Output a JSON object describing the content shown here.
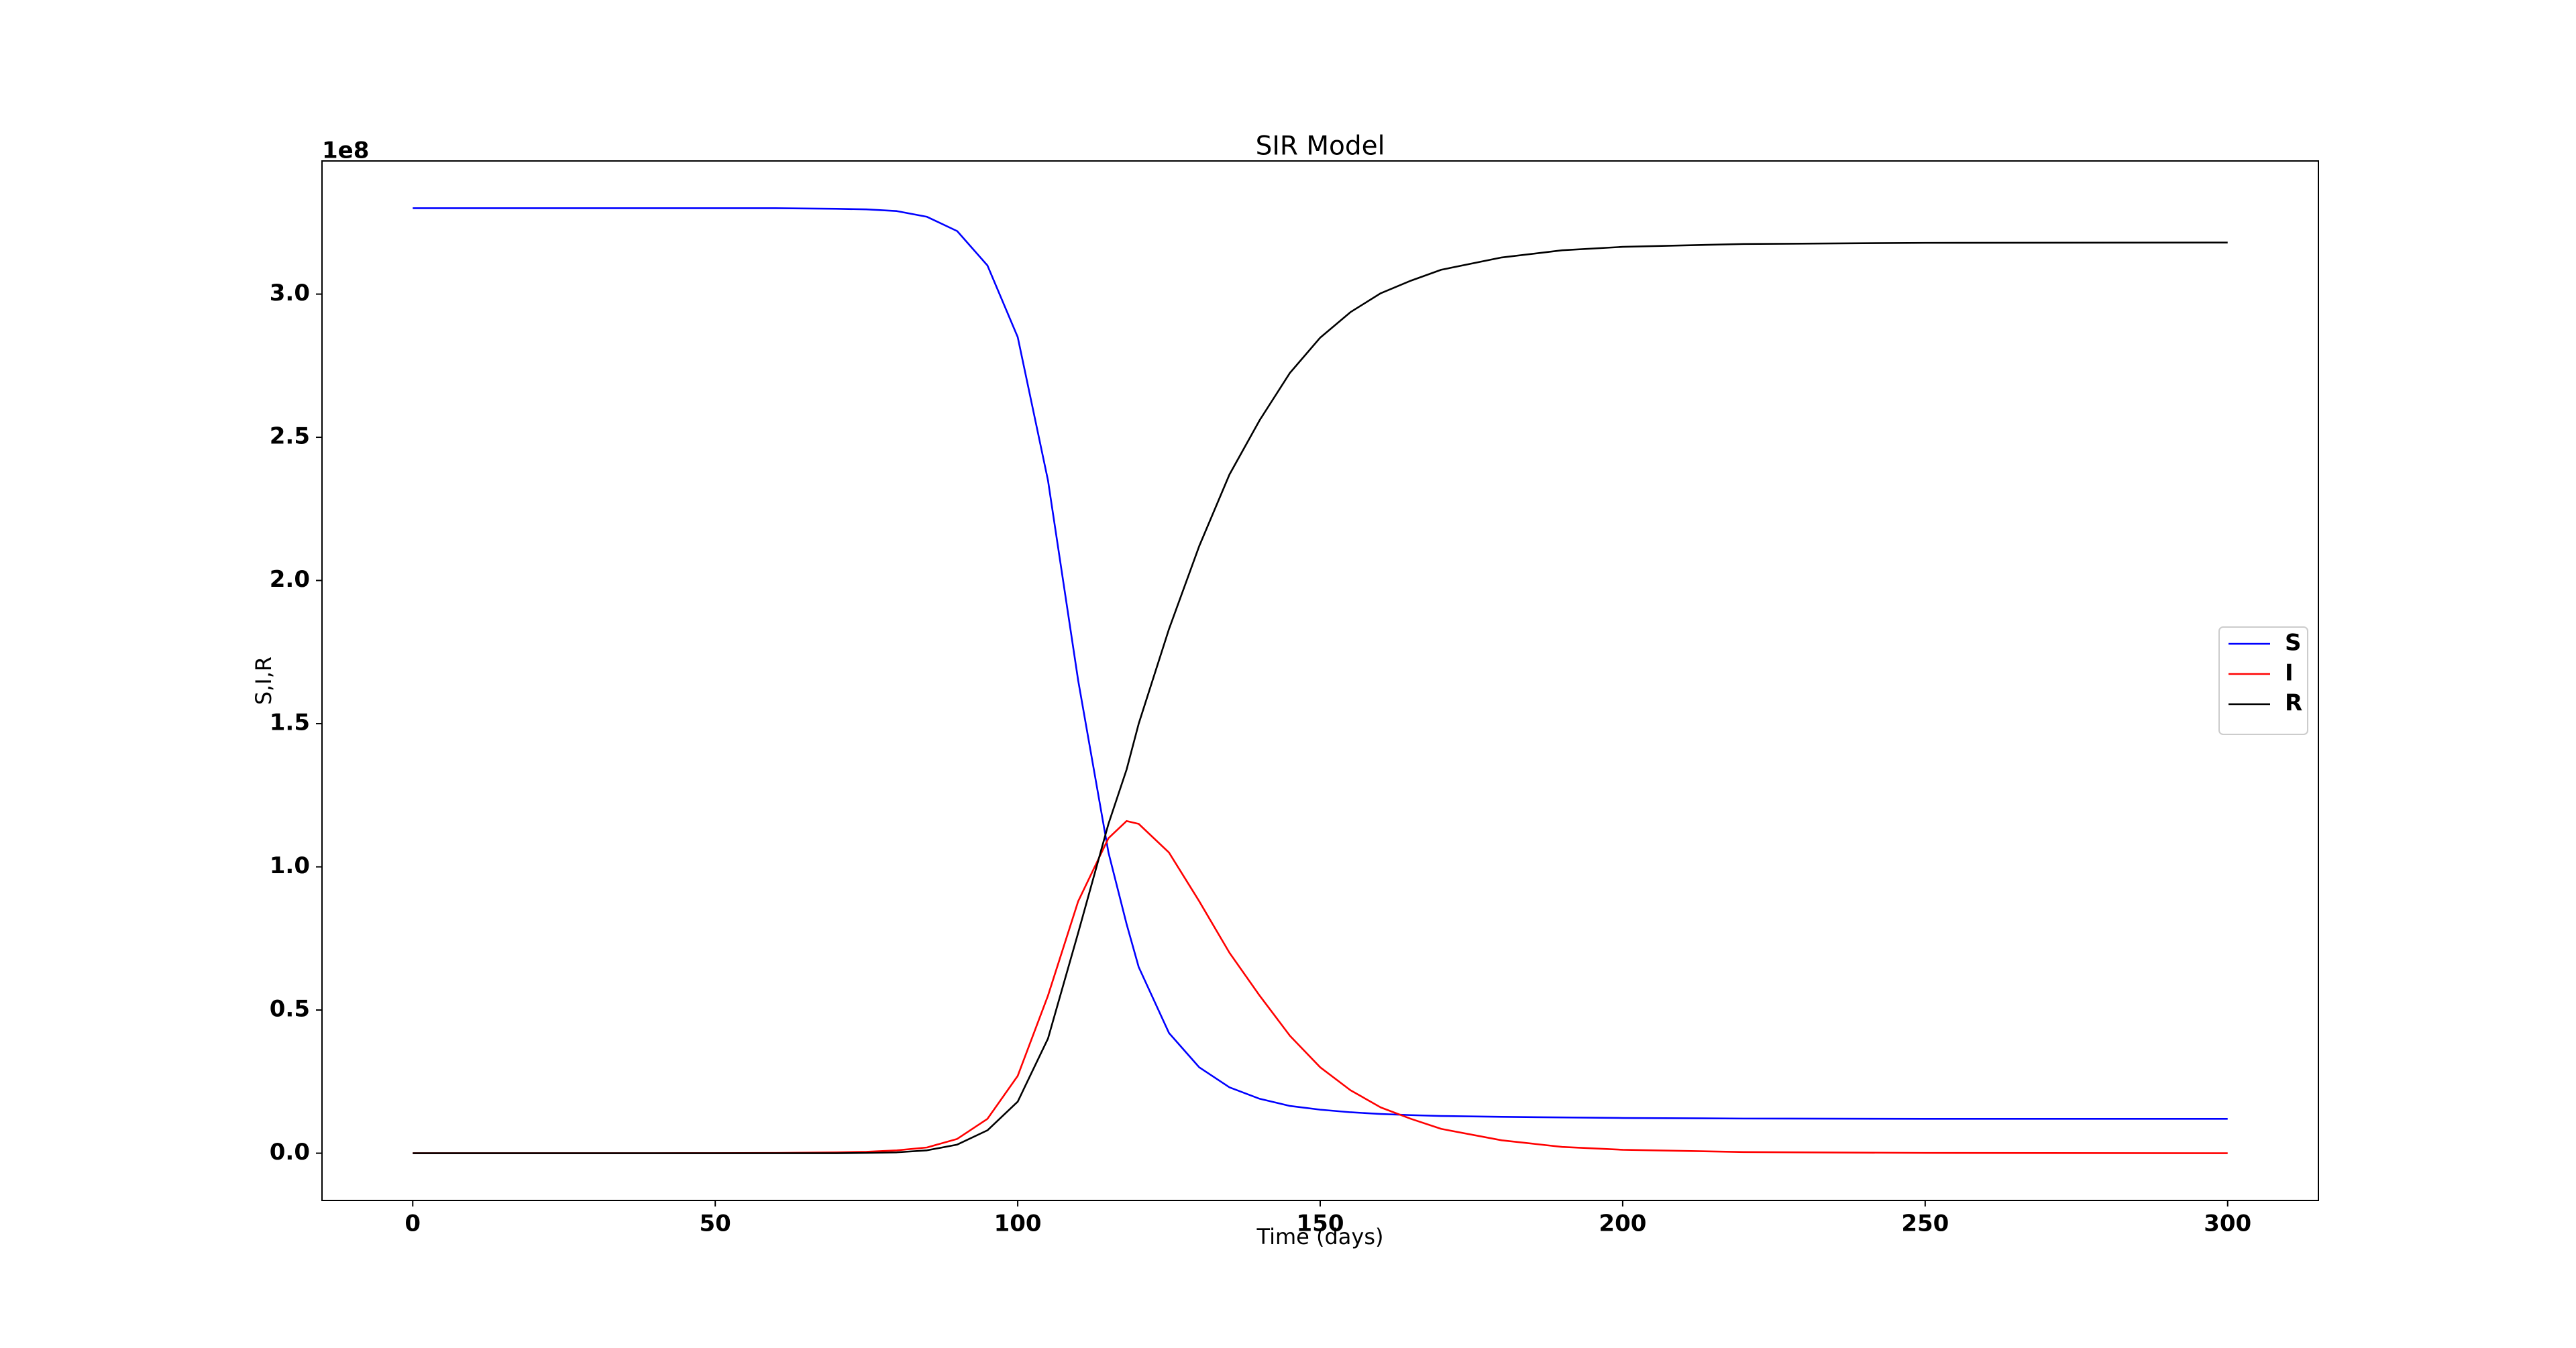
{
  "chart_data": {
    "type": "line",
    "title": "SIR Model",
    "x_label": "Time (days)",
    "y_label": "S,I,R",
    "y_offset_label": "1e8",
    "x": [
      0,
      10,
      20,
      30,
      40,
      50,
      60,
      70,
      75,
      80,
      85,
      90,
      95,
      100,
      105,
      110,
      115,
      118,
      120,
      125,
      130,
      135,
      140,
      145,
      150,
      155,
      160,
      165,
      170,
      180,
      190,
      200,
      220,
      250,
      300
    ],
    "series": [
      {
        "name": "S",
        "color": "#0000ff",
        "values": [
          330000000,
          330000000,
          330000000,
          330000000,
          330000000,
          330000000,
          330000000,
          329800000,
          329600000,
          329000000,
          327000000,
          322000000,
          310000000,
          285000000,
          235000000,
          165000000,
          105000000,
          80000000,
          65000000,
          42000000,
          30000000,
          23000000,
          19000000,
          16500000,
          15200000,
          14300000,
          13700000,
          13300000,
          13000000,
          12700000,
          12500000,
          12300000,
          12100000,
          12000000,
          12000000
        ]
      },
      {
        "name": "I",
        "color": "#ff0000",
        "values": [
          0,
          0,
          0,
          0,
          10000,
          30000,
          100000,
          300000,
          500000,
          1000000,
          2000000,
          5000000,
          12000000,
          27000000,
          55000000,
          88000000,
          110000000,
          116000000,
          115000000,
          105000000,
          88000000,
          70000000,
          55000000,
          41000000,
          30000000,
          22000000,
          16000000,
          12000000,
          8500000,
          4500000,
          2200000,
          1200000,
          400000,
          100000,
          0
        ]
      },
      {
        "name": "R",
        "color": "#000000",
        "values": [
          0,
          0,
          0,
          0,
          0,
          0,
          0,
          0,
          100000,
          300000,
          1000000,
          3000000,
          8000000,
          18000000,
          40000000,
          77000000,
          115000000,
          134000000,
          150000000,
          183000000,
          212000000,
          237000000,
          256000000,
          272500000,
          284800000,
          293700000,
          300300000,
          304700000,
          308500000,
          312800000,
          315300000,
          316500000,
          317500000,
          317900000,
          318000000
        ]
      }
    ],
    "xlim": [
      -15,
      315
    ],
    "xticks": [
      0,
      50,
      100,
      150,
      200,
      250,
      300
    ],
    "ylim": [
      -16500000,
      346500000
    ],
    "yticks": [
      {
        "value": 0,
        "label": "0.0"
      },
      {
        "value": 50000000,
        "label": "0.5"
      },
      {
        "value": 100000000,
        "label": "1.0"
      },
      {
        "value": 150000000,
        "label": "1.5"
      },
      {
        "value": 200000000,
        "label": "2.0"
      },
      {
        "value": 250000000,
        "label": "2.5"
      },
      {
        "value": 300000000,
        "label": "3.0"
      }
    ],
    "grid": false,
    "legend": "center right"
  }
}
